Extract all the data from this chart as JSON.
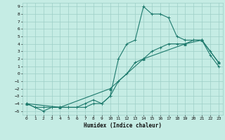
{
  "xlabel": "Humidex (Indice chaleur)",
  "bg_color": "#c5ece4",
  "grid_color": "#9ecfc7",
  "line_color": "#1e7a6d",
  "xlim": [
    -0.5,
    23.5
  ],
  "ylim": [
    -5.5,
    9.5
  ],
  "xticks": [
    0,
    1,
    2,
    3,
    4,
    5,
    6,
    7,
    8,
    9,
    10,
    11,
    12,
    13,
    14,
    15,
    16,
    17,
    18,
    19,
    20,
    21,
    22,
    23
  ],
  "yticks": [
    -5,
    -4,
    -3,
    -2,
    -1,
    0,
    1,
    2,
    3,
    4,
    5,
    6,
    7,
    8,
    9
  ],
  "line1_x": [
    0,
    1,
    2,
    3,
    4,
    5,
    6,
    7,
    8,
    9,
    10,
    11,
    12,
    13,
    14,
    15,
    16,
    17,
    18,
    19,
    20,
    21,
    22,
    23
  ],
  "line1_y": [
    -4,
    -4.5,
    -5,
    -4.5,
    -4.5,
    -4.5,
    -4.5,
    -4.5,
    -4,
    -4,
    -3,
    2,
    4,
    4.5,
    9,
    8,
    8,
    7.5,
    5,
    4.5,
    4.5,
    4.5,
    2.5,
    1
  ],
  "line2_x": [
    0,
    1,
    2,
    3,
    4,
    5,
    6,
    7,
    8,
    9,
    10,
    11,
    12,
    13,
    14,
    15,
    16,
    17,
    18,
    19,
    20,
    21,
    22,
    23
  ],
  "line2_y": [
    -4,
    -4.5,
    -4.5,
    -4.5,
    -4.5,
    -4.5,
    -4.5,
    -4,
    -3.5,
    -4,
    -3,
    -1,
    0,
    1.5,
    2,
    3,
    3.5,
    4,
    4,
    4,
    4.5,
    4.5,
    3,
    1.5
  ],
  "line3_x": [
    0,
    4,
    10,
    14,
    19,
    21,
    23
  ],
  "line3_y": [
    -4,
    -4.5,
    -2,
    2,
    4,
    4.5,
    1.5
  ]
}
